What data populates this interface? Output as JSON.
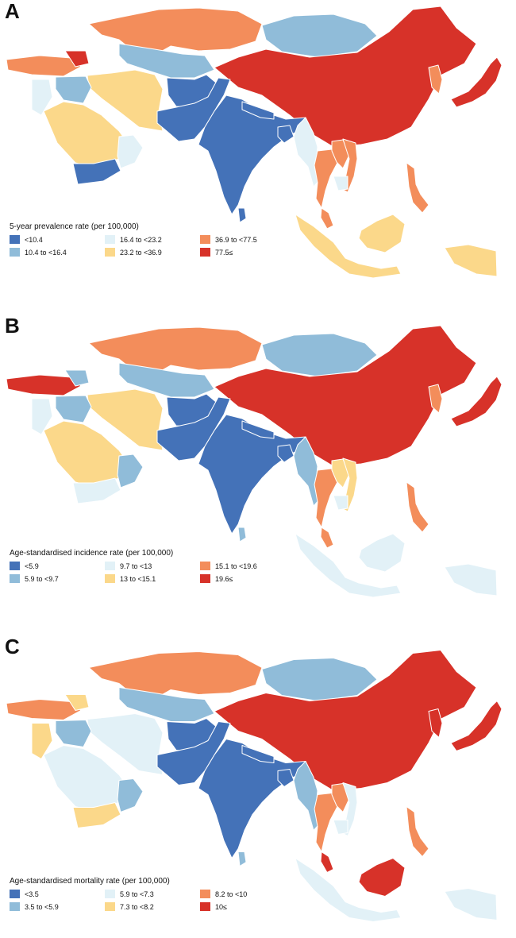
{
  "colors": {
    "c1": "#4472b8",
    "c2": "#90bcd9",
    "c3": "#e2f1f7",
    "c4": "#fbd88a",
    "c5": "#f38d5b",
    "c6": "#d73229",
    "water": "#ffffff"
  },
  "panels": [
    {
      "letter": "A",
      "legend_title": "5-year prevalence rate (per 100,000)",
      "legend": [
        "<10.4",
        "10.4 to <16.4",
        "16.4 to <23.2",
        "23.2 to <36.9",
        "36.9 to <77.5",
        "77.5≤"
      ]
    },
    {
      "letter": "B",
      "legend_title": "Age-standardised incidence rate (per 100,000)",
      "legend": [
        "<5.9",
        "5.9 to <9.7",
        "9.7 to <13",
        "13 to <15.1",
        "15.1 to <19.6",
        "19.6≤"
      ]
    },
    {
      "letter": "C",
      "legend_title": "Age-standardised mortality rate (per 100,000)",
      "legend": [
        "<3.5",
        "3.5 to <5.9",
        "5.9 to <7.3",
        "7.3 to <8.2",
        "8.2 to <10",
        "10≤"
      ]
    }
  ],
  "map_fills": {
    "A": {
      "kazakhstan": "c5",
      "mongolia": "c2",
      "china": "c6",
      "japan": "c6",
      "korea": "c5",
      "turkey": "c5",
      "caucasus": "c6",
      "central_asia": "c2",
      "iran": "c4",
      "iraq": "c2",
      "levant": "c3",
      "saudi": "c4",
      "yemen": "c1",
      "oman": "c3",
      "afghanistan": "c1",
      "pakistan": "c1",
      "india": "c1",
      "sri_lanka": "c1",
      "nepal": "c1",
      "bangladesh": "c1",
      "myanmar": "c3",
      "thailand": "c5",
      "laos": "c5",
      "vietnam": "c5",
      "cambodia": "c3",
      "malaysia": "c5",
      "indonesia": "c4",
      "philippines": "c5",
      "borneo": "c4",
      "papua": "c4"
    },
    "B": {
      "kazakhstan": "c5",
      "mongolia": "c2",
      "china": "c6",
      "japan": "c6",
      "korea": "c5",
      "turkey": "c6",
      "caucasus": "c2",
      "central_asia": "c2",
      "iran": "c4",
      "iraq": "c2",
      "levant": "c3",
      "saudi": "c4",
      "yemen": "c3",
      "oman": "c2",
      "afghanistan": "c1",
      "pakistan": "c1",
      "india": "c1",
      "sri_lanka": "c2",
      "nepal": "c1",
      "bangladesh": "c1",
      "myanmar": "c2",
      "thailand": "c5",
      "laos": "c4",
      "vietnam": "c4",
      "cambodia": "c3",
      "malaysia": "c5",
      "indonesia": "c3",
      "philippines": "c5",
      "borneo": "c3",
      "papua": "c3"
    },
    "C": {
      "kazakhstan": "c5",
      "mongolia": "c2",
      "china": "c6",
      "japan": "c6",
      "korea": "c6",
      "turkey": "c5",
      "caucasus": "c4",
      "central_asia": "c2",
      "iran": "c3",
      "iraq": "c2",
      "levant": "c4",
      "saudi": "c3",
      "yemen": "c4",
      "oman": "c2",
      "afghanistan": "c1",
      "pakistan": "c1",
      "india": "c1",
      "sri_lanka": "c2",
      "nepal": "c1",
      "bangladesh": "c1",
      "myanmar": "c2",
      "thailand": "c5",
      "laos": "c5",
      "vietnam": "c3",
      "cambodia": "c3",
      "malaysia": "c6",
      "indonesia": "c3",
      "philippines": "c5",
      "borneo": "c6",
      "papua": "c3"
    }
  }
}
